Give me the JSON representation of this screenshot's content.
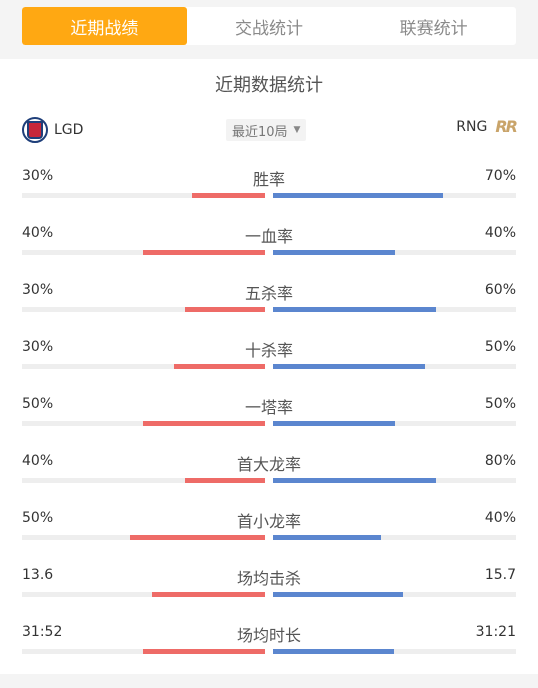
{
  "tabs": [
    {
      "label": "近期战绩",
      "active": true
    },
    {
      "label": "交战统计",
      "active": false
    },
    {
      "label": "联赛统计",
      "active": false
    }
  ],
  "panel": {
    "title": "近期数据统计",
    "left_team": {
      "name": "LGD",
      "logo": "lgd-logo"
    },
    "right_team": {
      "name": "RNG",
      "logo": "rng-logo",
      "logo_text": "R"
    },
    "selector": {
      "label": "最近10局",
      "icon": "caret-down-icon"
    }
  },
  "colors": {
    "left_bar": "#ee6b67",
    "right_bar": "#5b86cf",
    "active_tab": "#ffa812"
  },
  "stats": [
    {
      "label": "胜率",
      "left": "30%",
      "right": "70%",
      "left_fill": 0.3,
      "right_fill": 0.7
    },
    {
      "label": "一血率",
      "left": "40%",
      "right": "40%",
      "left_fill": 0.5,
      "right_fill": 0.5
    },
    {
      "label": "五杀率",
      "left": "30%",
      "right": "60%",
      "left_fill": 0.33,
      "right_fill": 0.67
    },
    {
      "label": "十杀率",
      "left": "30%",
      "right": "50%",
      "left_fill": 0.375,
      "right_fill": 0.625
    },
    {
      "label": "一塔率",
      "left": "50%",
      "right": "50%",
      "left_fill": 0.5,
      "right_fill": 0.5
    },
    {
      "label": "首大龙率",
      "left": "40%",
      "right": "80%",
      "left_fill": 0.33,
      "right_fill": 0.67
    },
    {
      "label": "首小龙率",
      "left": "50%",
      "right": "40%",
      "left_fill": 0.556,
      "right_fill": 0.444
    },
    {
      "label": "场均击杀",
      "left": "13.6",
      "right": "15.7",
      "left_fill": 0.464,
      "right_fill": 0.536
    },
    {
      "label": "场均时长",
      "left": "31:52",
      "right": "31:21",
      "left_fill": 0.504,
      "right_fill": 0.496
    }
  ]
}
